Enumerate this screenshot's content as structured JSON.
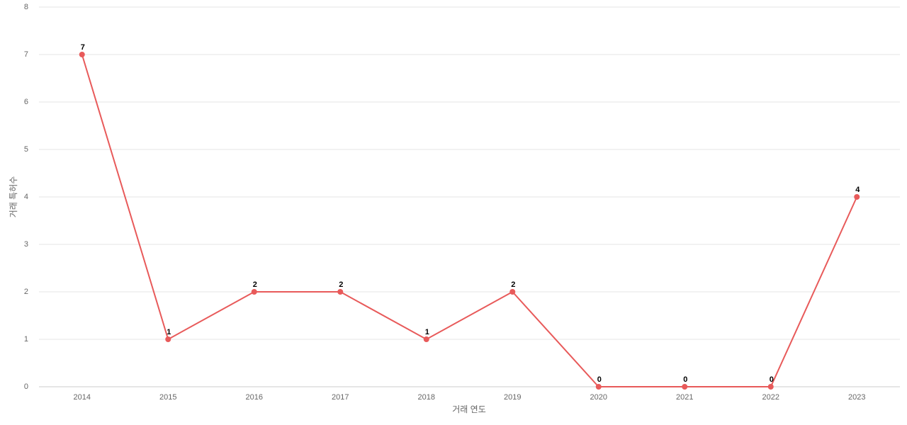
{
  "chart_data": {
    "type": "line",
    "categories": [
      "2014",
      "2015",
      "2016",
      "2017",
      "2018",
      "2019",
      "2020",
      "2021",
      "2022",
      "2023"
    ],
    "values": [
      7,
      1,
      2,
      2,
      1,
      2,
      0,
      0,
      0,
      4
    ],
    "color": "#e85a5a",
    "x_label": "거래 연도",
    "y_label": "거래 특허수",
    "ylim": [
      0,
      8
    ],
    "yticks": [
      0,
      1,
      2,
      3,
      4,
      5,
      6,
      7,
      8
    ],
    "grid": true
  }
}
